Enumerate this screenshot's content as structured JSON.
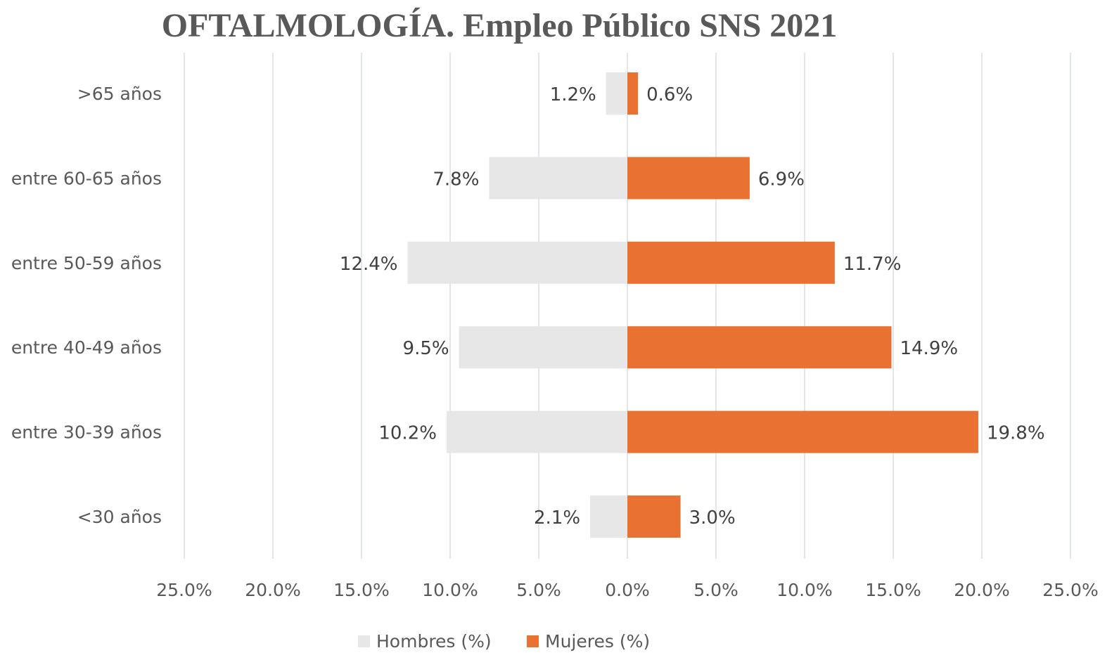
{
  "chart_data": {
    "type": "bar",
    "orientation": "horizontal",
    "title": "OFTALMOLOGÍA. Empleo Público SNS 2021",
    "categories": [
      ">65 años",
      "entre 60-65 años",
      "entre 50-59 años",
      "entre 40-49 años",
      "entre 30-39 años",
      "<30 años"
    ],
    "series": [
      {
        "name": "Hombres (%)",
        "values": [
          1.2,
          7.8,
          12.4,
          9.5,
          10.2,
          2.1
        ],
        "labels": [
          "1.2%",
          "7.8%",
          "12.4%",
          "9.5%",
          "10.2%",
          "2.1%"
        ],
        "color": "#e7e7e7",
        "direction": "left"
      },
      {
        "name": "Mujeres (%)",
        "values": [
          0.6,
          6.9,
          11.7,
          14.9,
          19.8,
          3.0
        ],
        "labels": [
          "0.6%",
          "6.9%",
          "11.7%",
          "14.9%",
          "19.8%",
          "3.0%"
        ],
        "color": "#e97132",
        "direction": "right"
      }
    ],
    "xlim": [
      -25,
      25
    ],
    "x_ticks": [
      -25,
      -20,
      -15,
      -10,
      -5,
      0,
      5,
      10,
      15,
      20,
      25
    ],
    "x_tick_labels": [
      "25.0%",
      "20.0%",
      "15.0%",
      "10.0%",
      "5.0%",
      "0.0%",
      "5.0%",
      "10.0%",
      "15.0%",
      "20.0%",
      "25.0%"
    ],
    "grid": "vertical",
    "legend_position": "bottom"
  }
}
